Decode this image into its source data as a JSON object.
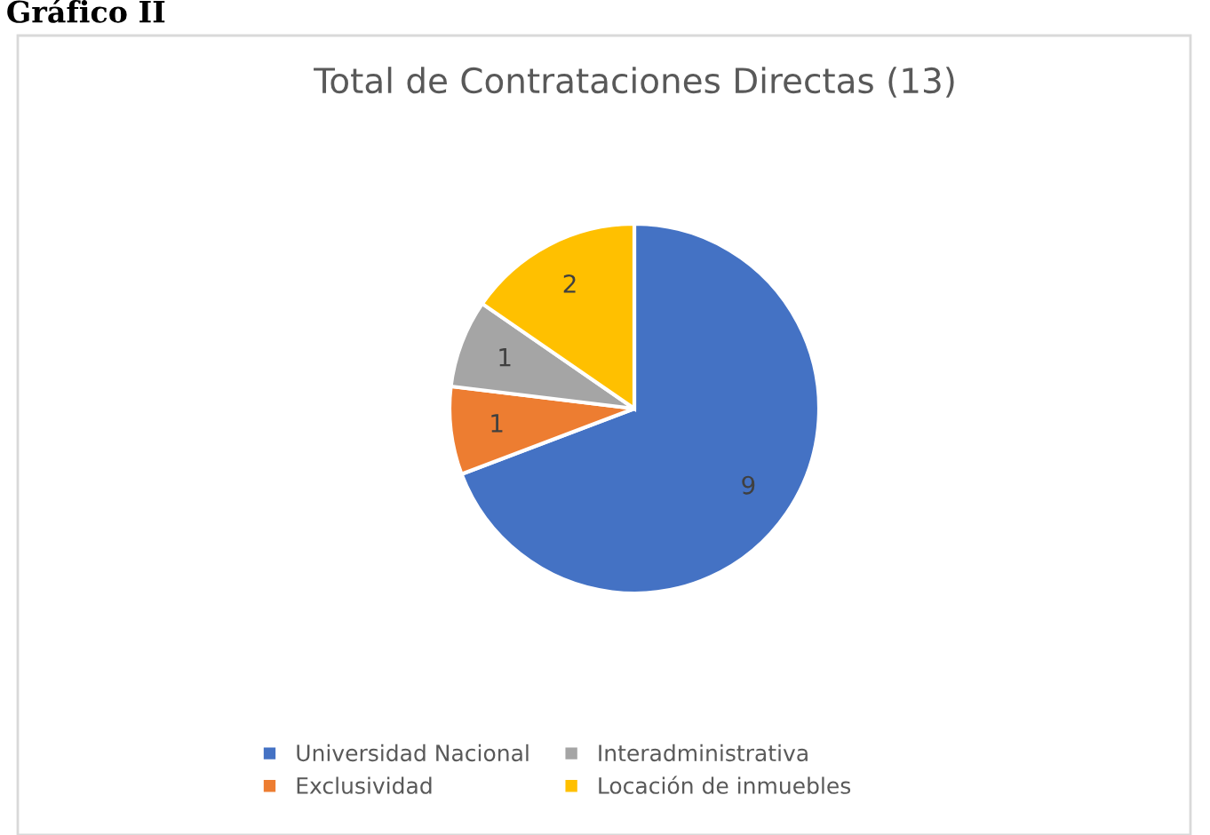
{
  "chart_data": {
    "type": "pie",
    "title": "Total de Contrataciones Directas (13)",
    "annotations": [
      "Gráfico II"
    ],
    "categories": [
      "Universidad Nacional",
      "Exclusividad",
      "Interadministrativa",
      "Locación de inmuebles"
    ],
    "values": [
      9,
      1,
      1,
      2
    ],
    "colors": [
      "#4472c4",
      "#ed7d31",
      "#a5a5a5",
      "#ffc000"
    ],
    "data_labels": true,
    "legend": "bottom"
  }
}
